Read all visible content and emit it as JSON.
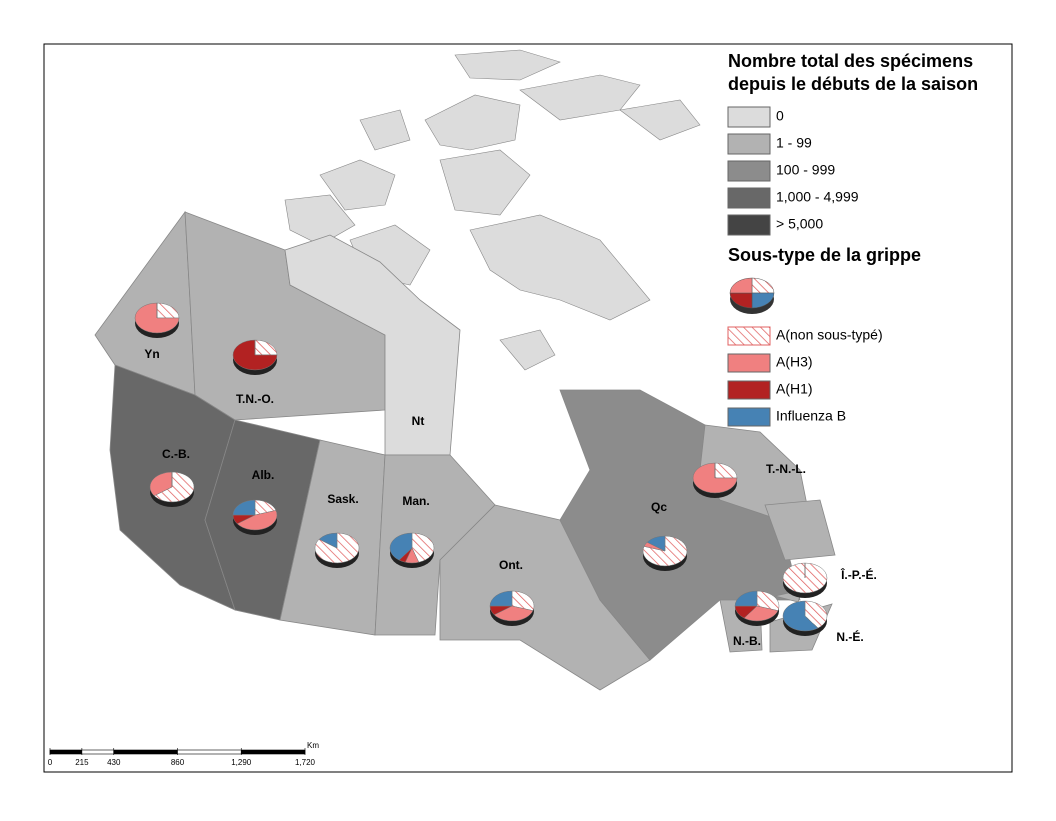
{
  "legend": {
    "count_title": [
      "Nombre total des spécimens",
      "depuis le débuts de la saison"
    ],
    "count_classes": [
      {
        "label": "0",
        "color": "#dcdcdc"
      },
      {
        "label": "1 - 99",
        "color": "#b2b2b2"
      },
      {
        "label": "100 - 999",
        "color": "#8c8c8c"
      },
      {
        "label": "1,000 - 4,999",
        "color": "#686868"
      },
      {
        "label": "> 5,000",
        "color": "#444444"
      }
    ],
    "subtype_title": "Sous-type de la grippe",
    "subtypes": [
      {
        "label": "A(non sous-typé)",
        "color": "#e06060",
        "pattern": "hatch"
      },
      {
        "label": "A(H3)",
        "color": "#f08080",
        "pattern": "solid"
      },
      {
        "label": "A(H1)",
        "color": "#b22222",
        "pattern": "solid"
      },
      {
        "label": "Influenza B",
        "color": "#4682b4",
        "pattern": "solid"
      }
    ]
  },
  "provinces": [
    {
      "label": "Yn",
      "color": "#b2b2b2",
      "shares": [
        25,
        75,
        0,
        0
      ]
    },
    {
      "label": "T.N.-O.",
      "color": "#b2b2b2",
      "shares": [
        25,
        0,
        75,
        0
      ]
    },
    {
      "label": "Nt",
      "color": "#dcdcdc",
      "shares": null
    },
    {
      "label": "C.-B.",
      "color": "#686868",
      "shares": [
        65,
        35,
        0,
        0
      ]
    },
    {
      "label": "Alb.",
      "color": "#686868",
      "shares": [
        20,
        45,
        10,
        25
      ]
    },
    {
      "label": "Sask.",
      "color": "#b2b2b2",
      "shares": [
        85,
        0,
        0,
        15
      ]
    },
    {
      "label": "Man.",
      "color": "#b2b2b2",
      "shares": [
        45,
        10,
        5,
        40
      ]
    },
    {
      "label": "Ont.",
      "color": "#b2b2b2",
      "shares": [
        30,
        35,
        10,
        25
      ]
    },
    {
      "label": "Qc",
      "color": "#8c8c8c",
      "shares": [
        80,
        5,
        0,
        15
      ]
    },
    {
      "label": "T.-N.-L.",
      "color": "#b2b2b2",
      "shares": [
        25,
        75,
        0,
        0
      ]
    },
    {
      "label": "Î.-P.-É.",
      "color": "#b2b2b2",
      "shares": [
        100,
        0,
        0,
        0
      ]
    },
    {
      "label": "N.-B.",
      "color": "#b2b2b2",
      "shares": [
        30,
        30,
        15,
        25
      ]
    },
    {
      "label": "N.-É.",
      "color": "#b2b2b2",
      "shares": [
        40,
        0,
        0,
        60
      ]
    }
  ],
  "scale_bar": {
    "unit": "Km",
    "ticks": [
      0,
      215,
      430,
      860,
      {
        "value": 1290,
        "label": "1,290"
      },
      {
        "value": 1720,
        "label": "1,720"
      }
    ]
  }
}
